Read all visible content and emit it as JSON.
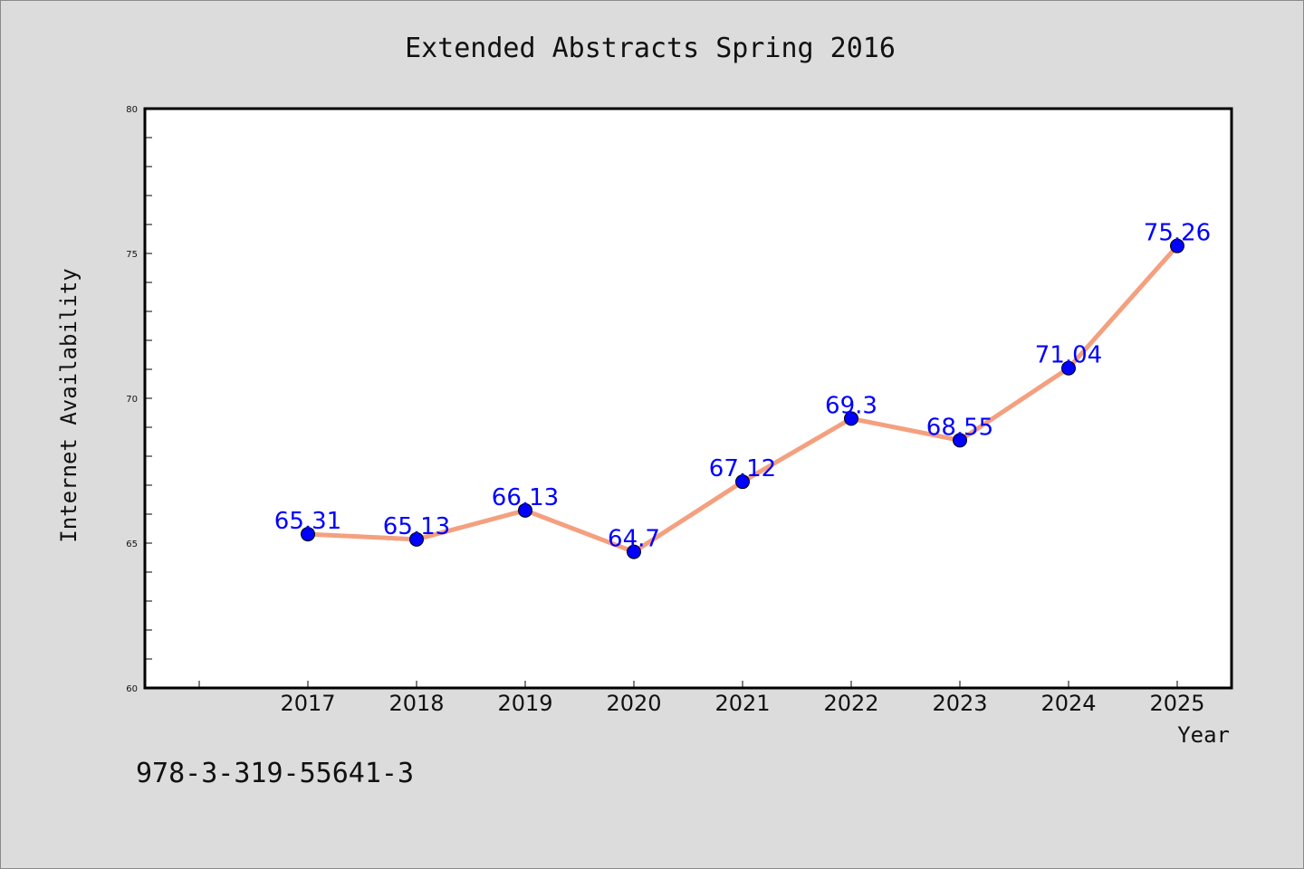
{
  "chart_data": {
    "type": "line",
    "title": "Extended Abstracts Spring 2016",
    "xlabel": "Year",
    "ylabel": "Internet Availability",
    "categories": [
      "2017",
      "2018",
      "2019",
      "2020",
      "2021",
      "2022",
      "2023",
      "2024",
      "2025"
    ],
    "series": [
      {
        "values": [
          65.31,
          65.13,
          66.13,
          64.7,
          67.12,
          69.3,
          68.55,
          71.04,
          75.26
        ],
        "data_labels": [
          "65.31",
          "65.13",
          "66.13",
          "64.7",
          "67.12",
          "69.3",
          "68.55",
          "71.04",
          "75.26"
        ]
      }
    ],
    "ylim": [
      60,
      80
    ],
    "yticks": [
      "60",
      "65",
      "70",
      "75",
      "80"
    ],
    "grid": false,
    "legend": "none"
  },
  "footer": {
    "isbn": "978-3-319-55641-3"
  },
  "colors": {
    "line": "#f4a07f",
    "marker": "#0000ff",
    "data_label": "#0000ff",
    "plot_background": "#ffffff",
    "page_background": "#dcdcdc"
  }
}
